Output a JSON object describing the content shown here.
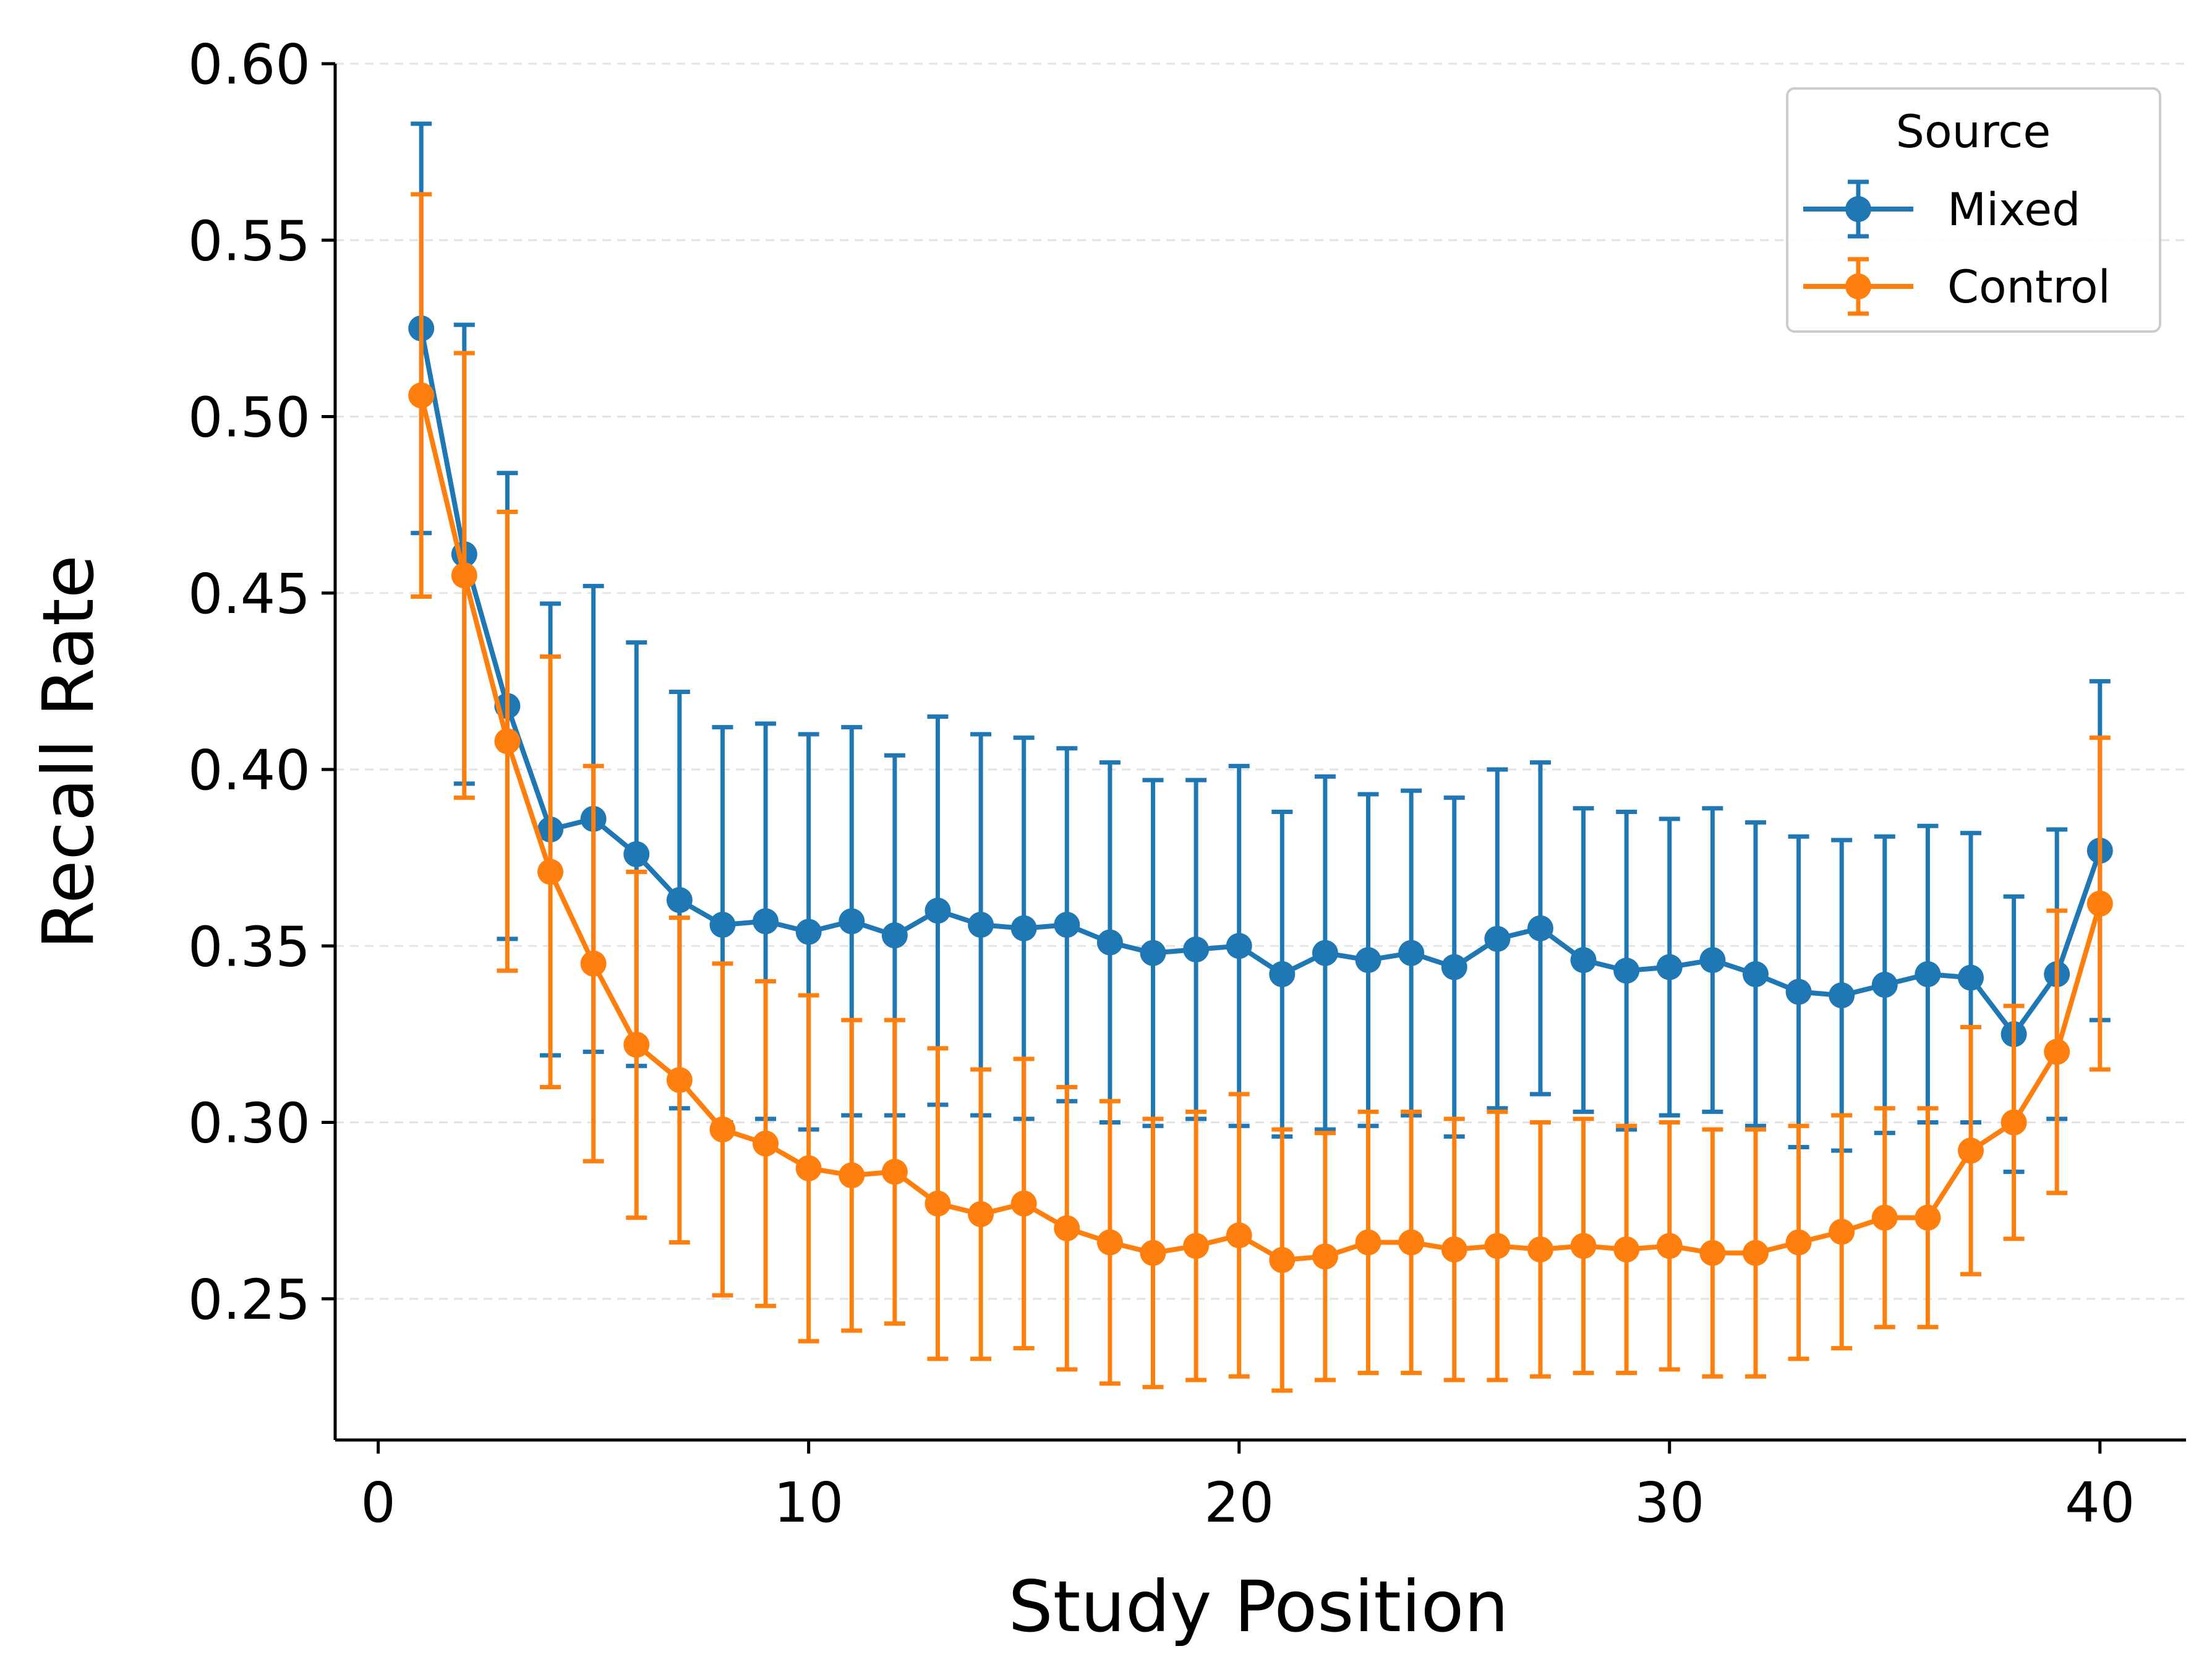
{
  "chart_data": {
    "type": "line",
    "xlabel": "Study Position",
    "ylabel": "Recall Rate",
    "xlim": [
      -1,
      42
    ],
    "ylim": [
      0.21,
      0.6
    ],
    "xticks": [
      0,
      10,
      20,
      30,
      40
    ],
    "xtick_labels": [
      "0",
      "10",
      "20",
      "30",
      "40"
    ],
    "yticks": [
      0.25,
      0.3,
      0.35,
      0.4,
      0.45,
      0.5,
      0.55,
      0.6
    ],
    "ytick_labels": [
      "0.25",
      "0.30",
      "0.35",
      "0.40",
      "0.45",
      "0.50",
      "0.55",
      "0.60"
    ],
    "grid": "horizontal dashed",
    "legend": {
      "title": "Source",
      "position": "top-right"
    },
    "x": [
      1,
      2,
      3,
      4,
      5,
      6,
      7,
      8,
      9,
      10,
      11,
      12,
      13,
      14,
      15,
      16,
      17,
      18,
      19,
      20,
      21,
      22,
      23,
      24,
      25,
      26,
      27,
      28,
      29,
      30,
      31,
      32,
      33,
      34,
      35,
      36,
      37,
      38,
      39,
      40
    ],
    "series": [
      {
        "name": "Mixed",
        "color": "#1f77b4",
        "values": [
          0.525,
          0.461,
          0.418,
          0.383,
          0.386,
          0.376,
          0.363,
          0.356,
          0.357,
          0.354,
          0.357,
          0.353,
          0.36,
          0.356,
          0.355,
          0.356,
          0.351,
          0.348,
          0.349,
          0.35,
          0.342,
          0.348,
          0.346,
          0.348,
          0.344,
          0.352,
          0.355,
          0.346,
          0.343,
          0.344,
          0.346,
          0.342,
          0.337,
          0.336,
          0.339,
          0.342,
          0.341,
          0.325,
          0.342,
          0.377
        ],
        "errors": [
          0.058,
          0.065,
          0.066,
          0.064,
          0.066,
          0.06,
          0.059,
          0.056,
          0.056,
          0.056,
          0.055,
          0.051,
          0.055,
          0.054,
          0.054,
          0.05,
          0.051,
          0.049,
          0.048,
          0.051,
          0.046,
          0.05,
          0.047,
          0.046,
          0.048,
          0.048,
          0.047,
          0.043,
          0.045,
          0.042,
          0.043,
          0.043,
          0.044,
          0.044,
          0.042,
          0.042,
          0.041,
          0.039,
          0.041,
          0.048
        ]
      },
      {
        "name": "Control",
        "color": "#ff7f0e",
        "values": [
          0.506,
          0.455,
          0.408,
          0.371,
          0.345,
          0.322,
          0.312,
          0.298,
          0.294,
          0.287,
          0.285,
          0.286,
          0.277,
          0.274,
          0.277,
          0.27,
          0.266,
          0.263,
          0.265,
          0.268,
          0.261,
          0.262,
          0.266,
          0.266,
          0.264,
          0.265,
          0.264,
          0.265,
          0.264,
          0.265,
          0.263,
          0.263,
          0.266,
          0.269,
          0.273,
          0.273,
          0.292,
          0.3,
          0.32,
          0.362
        ],
        "errors": [
          0.057,
          0.063,
          0.065,
          0.061,
          0.056,
          0.049,
          0.046,
          0.047,
          0.046,
          0.049,
          0.044,
          0.043,
          0.044,
          0.041,
          0.041,
          0.04,
          0.04,
          0.038,
          0.038,
          0.04,
          0.037,
          0.035,
          0.037,
          0.037,
          0.037,
          0.038,
          0.036,
          0.036,
          0.035,
          0.035,
          0.035,
          0.035,
          0.033,
          0.033,
          0.031,
          0.031,
          0.035,
          0.033,
          0.04,
          0.047
        ]
      }
    ]
  }
}
